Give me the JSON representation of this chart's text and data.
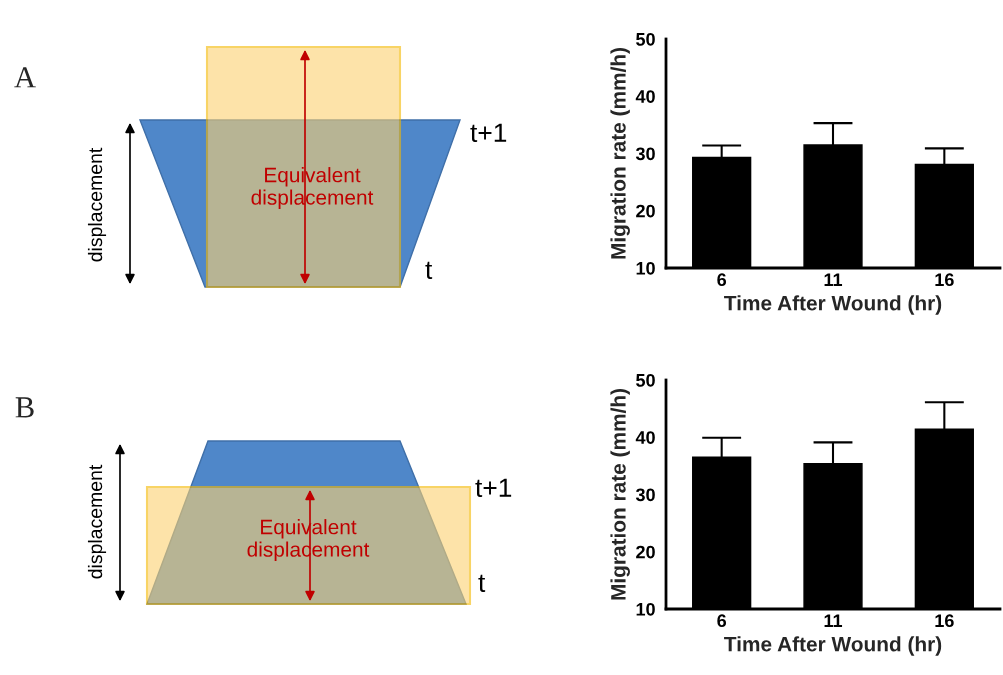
{
  "chart_data": [
    {
      "type": "other",
      "title": "A",
      "annotations": [
        "displacement",
        "Equivalent displacement",
        "t+1",
        "t"
      ]
    },
    {
      "type": "bar",
      "categories": [
        "6",
        "11",
        "16"
      ],
      "xlabel": "Time After Wound (hr)",
      "ylabel": "Migration rate (mm/h)",
      "ylim": [
        10,
        50
      ],
      "yticks": [
        10,
        20,
        30,
        40,
        50
      ],
      "grid": false,
      "series": [
        {
          "color": "#000000",
          "values": [
            29.3,
            31.5,
            28.1
          ],
          "errors": [
            2.1,
            3.8,
            2.8
          ]
        }
      ]
    },
    {
      "type": "other",
      "title": "B",
      "annotations": [
        "displacement",
        "Equivalent displacement",
        "t+1",
        "t"
      ]
    },
    {
      "type": "bar",
      "categories": [
        "6",
        "11",
        "16"
      ],
      "xlabel": "Time After Wound (hr)",
      "ylabel": "Migration rate (mm/h)",
      "ylim": [
        10,
        50
      ],
      "yticks": [
        10,
        20,
        30,
        40,
        50
      ],
      "grid": false,
      "series": [
        {
          "color": "#000000",
          "values": [
            36.5,
            35.4,
            41.4
          ],
          "errors": [
            3.4,
            3.7,
            4.7
          ]
        }
      ]
    }
  ]
}
